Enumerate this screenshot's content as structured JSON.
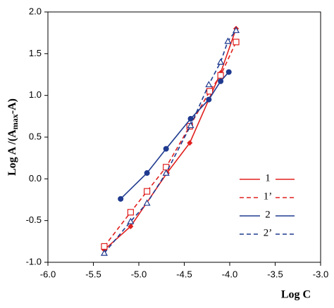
{
  "chart_data": {
    "type": "line",
    "x_label": "Log C",
    "y_label": [
      "Log A /(A",
      "max",
      "-A)"
    ],
    "xlim": [
      -6.0,
      -3.0
    ],
    "ylim": [
      -1.0,
      2.0
    ],
    "xticks": [
      {
        "value": -6.0,
        "label": "-6.0"
      },
      {
        "value": -5.5,
        "label": "-5.5"
      },
      {
        "value": -5.0,
        "label": "-5.0"
      },
      {
        "value": -4.5,
        "label": "-4.5"
      },
      {
        "value": -4.0,
        "label": "-4.0"
      },
      {
        "value": -3.5,
        "label": "-3.5"
      },
      {
        "value": -3.0,
        "label": "-3.0"
      }
    ],
    "yticks": [
      {
        "value": -1.0,
        "label": "-1.0"
      },
      {
        "value": -0.5,
        "label": "-0.5"
      },
      {
        "value": 0.0,
        "label": "0.0"
      },
      {
        "value": 0.5,
        "label": "0.5"
      },
      {
        "value": 1.0,
        "label": "1.0"
      },
      {
        "value": 1.5,
        "label": "1.5"
      },
      {
        "value": 2.0,
        "label": "2.0"
      }
    ],
    "legend_position": "lower right",
    "series": [
      {
        "name": "1",
        "color": "#e0201e",
        "dash": false,
        "marker": "diamond",
        "x": [
          -5.38,
          -5.09,
          -4.69,
          -4.44,
          -4.23,
          -4.1,
          -3.93
        ],
        "values": [
          -0.85,
          -0.57,
          0.07,
          0.43,
          0.95,
          1.27,
          1.8
        ]
      },
      {
        "name": "1’",
        "color": "#e0201e",
        "dash": true,
        "marker": "open-square",
        "x": [
          -5.38,
          -5.09,
          -4.91,
          -4.7,
          -4.44,
          -4.22,
          -4.1,
          -3.93
        ],
        "values": [
          -0.81,
          -0.4,
          -0.15,
          0.14,
          0.63,
          1.05,
          1.24,
          1.64
        ]
      },
      {
        "name": "2",
        "color": "#1f3a8f",
        "dash": false,
        "marker": "circle",
        "x": [
          -5.2,
          -4.91,
          -4.7,
          -4.43,
          -4.23,
          -4.1,
          -4.01
        ],
        "values": [
          -0.24,
          0.07,
          0.36,
          0.72,
          0.95,
          1.17,
          1.28
        ]
      },
      {
        "name": "2’",
        "color": "#1f3a8f",
        "dash": true,
        "marker": "open-triangle",
        "x": [
          -5.38,
          -5.09,
          -4.91,
          -4.7,
          -4.43,
          -4.23,
          -4.1,
          -4.02,
          -3.93
        ],
        "values": [
          -0.89,
          -0.51,
          -0.29,
          0.07,
          0.64,
          1.13,
          1.4,
          1.65,
          1.78
        ]
      }
    ]
  }
}
